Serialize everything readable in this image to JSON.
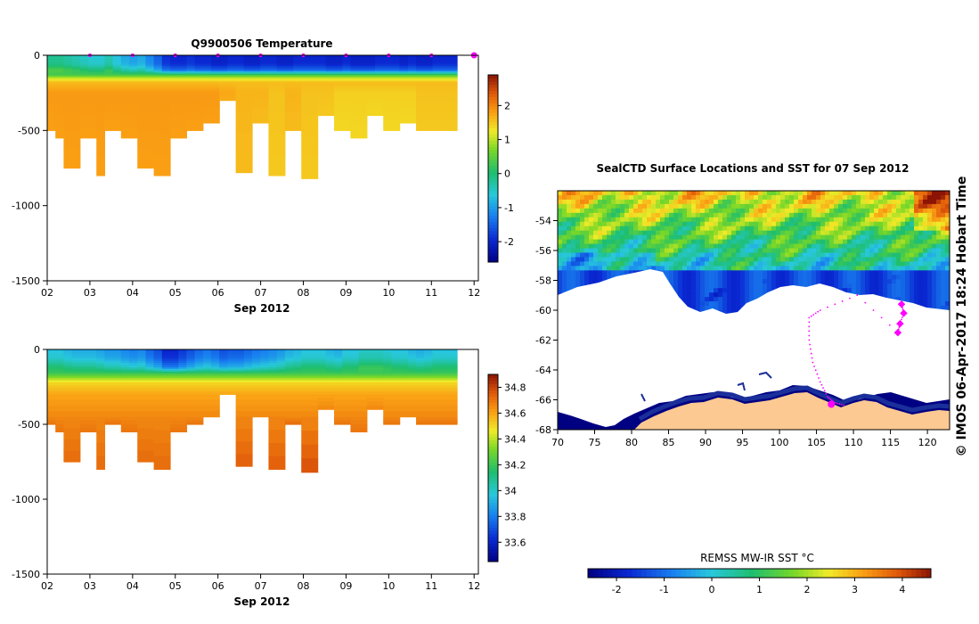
{
  "chart_data": [
    {
      "id": "temperature-section",
      "type": "heatmap",
      "title": "Q9900506  Temperature",
      "xlabel": "Sep 2012",
      "ylabel": "",
      "xlim": [
        2,
        12.1
      ],
      "ylim": [
        -1500,
        0
      ],
      "xticks": [
        "02",
        "03",
        "04",
        "05",
        "06",
        "07",
        "08",
        "09",
        "10",
        "11",
        "12"
      ],
      "yticks": [
        "0",
        "-500",
        "-1000",
        "-1500"
      ],
      "profile_marker_days": [
        3,
        4,
        5,
        6,
        7,
        8,
        9,
        10,
        11,
        12
      ],
      "colorbar_range": [
        -2.6,
        2.9
      ],
      "colorbar_ticks": [
        "2",
        "1",
        "0",
        "-1",
        "-2"
      ],
      "surface_temps": [
        -0.2,
        -0.2,
        -0.3,
        -0.4,
        -0.5,
        -0.6,
        -0.6,
        -0.4,
        -0.7,
        -0.9,
        -1.0,
        -0.9,
        -1.2,
        -1.5,
        -1.9,
        -2.0,
        -2.0,
        -1.9,
        -2.0,
        -2.0,
        -2.1,
        -2.1,
        -2.0,
        -2.0,
        -2.1,
        -2.1,
        -2.0,
        -2.0,
        -2.1,
        -2.1,
        -2.0,
        -2.0,
        -2.0,
        -2.0,
        -2.1,
        -2.1,
        -2.0,
        -2.1,
        -2.1,
        -2.1,
        -2.0,
        -2.0,
        -2.0,
        -2.1,
        -2.0,
        -2.1,
        -2.1,
        -2.0,
        -2.0,
        -2.0
      ],
      "profile_depths": [
        500,
        550,
        750,
        750,
        550,
        550,
        800,
        500,
        500,
        550,
        550,
        750,
        750,
        800,
        800,
        550,
        550,
        500,
        500,
        450,
        450,
        300,
        300,
        780,
        780,
        450,
        450,
        800,
        800,
        500,
        500,
        820,
        820,
        400,
        400,
        500,
        500,
        550,
        550,
        400,
        400,
        500,
        500,
        450,
        450,
        500,
        500,
        500,
        500,
        500
      ],
      "deep_temps": [
        1.9,
        1.9,
        1.9,
        1.9,
        1.9,
        1.9,
        1.9,
        1.9,
        1.9,
        1.9,
        1.9,
        1.9,
        1.9,
        1.9,
        1.9,
        1.9,
        1.9,
        1.9,
        1.9,
        1.9,
        1.9,
        1.8,
        1.8,
        1.7,
        1.7,
        1.7,
        1.7,
        1.6,
        1.6,
        1.7,
        1.7,
        1.6,
        1.6,
        1.6,
        1.6,
        1.5,
        1.5,
        1.5,
        1.5,
        1.5,
        1.5,
        1.5,
        1.5,
        1.5,
        1.5,
        1.6,
        1.6,
        1.6,
        1.6,
        1.6
      ]
    },
    {
      "id": "salinity-section",
      "type": "heatmap",
      "title": "",
      "xlabel": "Sep 2012",
      "ylabel": "",
      "xlim": [
        2,
        12.1
      ],
      "ylim": [
        -1500,
        0
      ],
      "xticks": [
        "02",
        "03",
        "04",
        "05",
        "06",
        "07",
        "08",
        "09",
        "10",
        "11",
        "12"
      ],
      "yticks": [
        "0",
        "-500",
        "-1000",
        "-1500"
      ],
      "colorbar_range": [
        33.45,
        34.9
      ],
      "colorbar_ticks": [
        "34.8",
        "34.6",
        "34.4",
        "34.2",
        "34",
        "33.8",
        "33.6"
      ],
      "surface_values": [
        33.95,
        33.95,
        33.92,
        33.9,
        33.9,
        33.9,
        33.88,
        33.85,
        33.85,
        33.82,
        33.8,
        33.82,
        33.75,
        33.7,
        33.6,
        33.6,
        33.65,
        33.7,
        33.75,
        33.78,
        33.75,
        33.7,
        33.72,
        33.72,
        33.75,
        33.78,
        33.8,
        33.82,
        33.85,
        33.9,
        33.92,
        33.95,
        33.95,
        33.95,
        33.92,
        33.9,
        33.95,
        33.95,
        34.0,
        34.0,
        34.0,
        33.98,
        33.95,
        33.95,
        33.92,
        33.9,
        33.92,
        33.95,
        33.95,
        33.95
      ],
      "deep_values": [
        34.7,
        34.7,
        34.72,
        34.72,
        34.7,
        34.7,
        34.72,
        34.7,
        34.7,
        34.7,
        34.7,
        34.72,
        34.72,
        34.72,
        34.72,
        34.7,
        34.7,
        34.7,
        34.7,
        34.7,
        34.7,
        34.68,
        34.68,
        34.75,
        34.75,
        34.7,
        34.7,
        34.75,
        34.75,
        34.72,
        34.72,
        34.78,
        34.78,
        34.7,
        34.7,
        34.7,
        34.7,
        34.7,
        34.7,
        34.68,
        34.68,
        34.7,
        34.7,
        34.68,
        34.68,
        34.7,
        34.7,
        34.7,
        34.7,
        34.7
      ]
    },
    {
      "id": "sst-map",
      "type": "heatmap",
      "title": "SealCTD Surface Locations and SST for 07 Sep 2012",
      "xlim": [
        70,
        123
      ],
      "ylim": [
        -68,
        -52
      ],
      "xticks": [
        "70",
        "75",
        "80",
        "85",
        "90",
        "95",
        "100",
        "105",
        "110",
        "115",
        "120"
      ],
      "yticks": [
        "-54",
        "-56",
        "-58",
        "-60",
        "-62",
        "-64",
        "-66",
        "-68"
      ],
      "colorbar_label": "REMSS MW-IR SST °C",
      "colorbar_range": [
        -2.6,
        4.6
      ],
      "colorbar_ticks": [
        "-2",
        "-1",
        "0",
        "1",
        "2",
        "3",
        "4"
      ],
      "track_points": [
        [
          116.5,
          -59.6
        ],
        [
          116.8,
          -60.2
        ],
        [
          116.3,
          -60.9
        ],
        [
          116.0,
          -61.5
        ],
        [
          110.5,
          -59.0
        ],
        [
          105.5,
          -60.0
        ],
        [
          104.0,
          -60.5
        ],
        [
          104.0,
          -62.0
        ],
        [
          104.5,
          -63.5
        ],
        [
          105.5,
          -64.8
        ],
        [
          106.5,
          -65.8
        ],
        [
          107.5,
          -66.2
        ],
        [
          109.0,
          -66.4
        ]
      ],
      "current_location": [
        107.0,
        -66.3
      ]
    }
  ],
  "side_credit": "© IMOS 06-Apr-2017 18:24 Hobart Time",
  "colors": {
    "land": "#fcc992",
    "sea_ice": "#ffffff",
    "track": "#ff00ff"
  }
}
